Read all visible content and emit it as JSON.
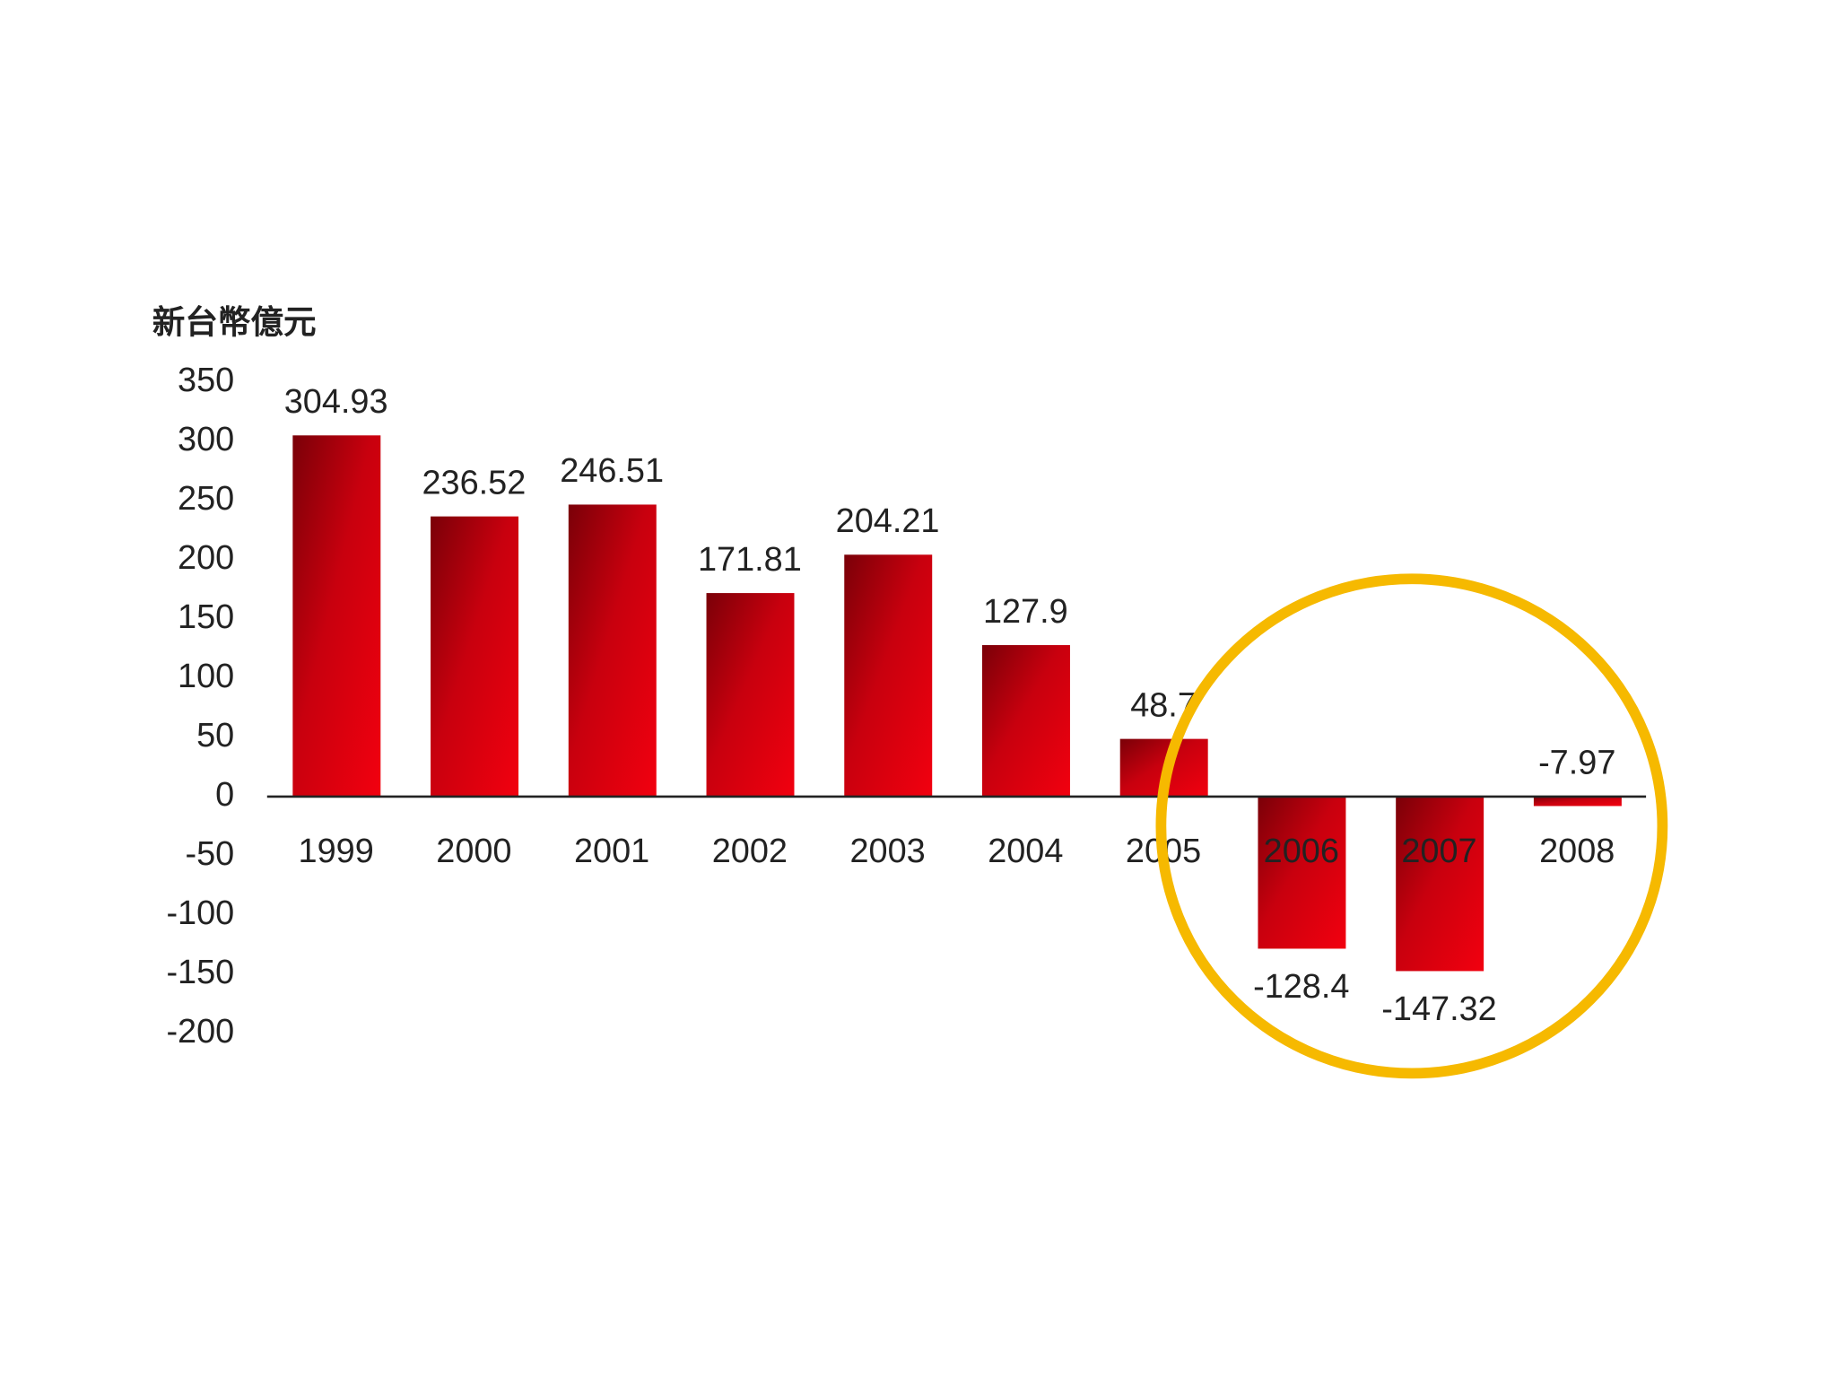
{
  "chart_data": {
    "type": "bar",
    "y_label": "新台幣億元",
    "categories": [
      "1999",
      "2000",
      "2001",
      "2002",
      "2003",
      "2004",
      "2005",
      "2006",
      "2007",
      "2008"
    ],
    "values": [
      304.93,
      236.52,
      246.51,
      171.81,
      204.21,
      127.9,
      48.7,
      -128.4,
      -147.32,
      -7.97
    ],
    "color": "#d40010",
    "ylim": [
      -200,
      350
    ],
    "yticks": [
      -200,
      -150,
      -100,
      -50,
      0,
      50,
      100,
      150,
      200,
      250,
      300,
      350
    ],
    "grid": false
  }
}
